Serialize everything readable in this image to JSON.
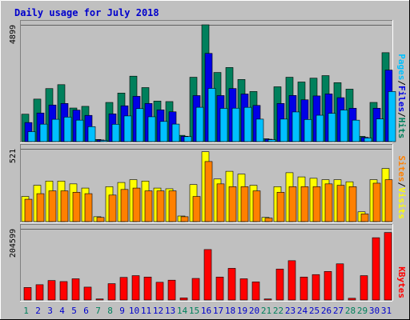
{
  "chart_data": {
    "type": "bar",
    "title": "Daily usage for July 2018",
    "days": [
      "1",
      "2",
      "3",
      "4",
      "5",
      "6",
      "7",
      "8",
      "9",
      "10",
      "11",
      "12",
      "13",
      "14",
      "15",
      "16",
      "17",
      "18",
      "19",
      "20",
      "21",
      "22",
      "23",
      "24",
      "25",
      "26",
      "27",
      "28",
      "29",
      "30",
      "31"
    ],
    "weekend_days": [
      "1",
      "7",
      "8",
      "14",
      "15",
      "21",
      "22",
      "28",
      "29"
    ],
    "colors": {
      "title": "#0000cc",
      "hits": "#00805c",
      "files": "#0000e6",
      "pages": "#00c0ff",
      "visits": "#ffff00",
      "sites": "#ff8000",
      "kbytes": "#ff0000",
      "weekday": "#0000cc",
      "weekend": "#00805c",
      "plot_bg": "#c0c0c0"
    },
    "panels": [
      {
        "name": "hits-files-pages",
        "ymax": 4899,
        "ymax_label": "4899",
        "legend": [
          {
            "text": "Pages",
            "color": "#00c0ff"
          },
          {
            "text": "/",
            "color": "#000000"
          },
          {
            "text": "Files",
            "color": "#0000e6"
          },
          {
            "text": "/",
            "color": "#000000"
          },
          {
            "text": "Hits",
            "color": "#00805c"
          }
        ],
        "series": [
          {
            "key": "hits",
            "values": [
              1150,
              1783,
              2224,
              2389,
              1409,
              1479,
              90,
              1643,
              2036,
              2745,
              2266,
              1700,
              1679,
              263,
              2700,
              4899,
              2900,
              3108,
              2606,
              2102,
              120,
              2300,
              2700,
              2500,
              2661,
              2768,
              2473,
              2200,
              220,
              1644,
              3730
            ]
          },
          {
            "key": "files",
            "values": [
              800,
              1200,
              1535,
              1600,
              1322,
              1100,
              70,
              1164,
              1502,
              1900,
              1600,
              1332,
              1250,
              224,
              1931,
              3700,
              1932,
              2227,
              1997,
              1518,
              100,
              1600,
              1936,
              1754,
              1916,
              2000,
              1843,
              1400,
              180,
              1400,
              3000
            ]
          },
          {
            "key": "pages",
            "values": [
              418,
              732,
              936,
              1029,
              900,
              628,
              50,
              728,
              1077,
              1383,
              1042,
              846,
              735,
              209,
              1439,
              2231,
              1393,
              1401,
              1437,
              943,
              80,
              945,
              1244,
              928,
              1106,
              1186,
              1325,
              900,
              150,
              950,
              2100
            ]
          }
        ]
      },
      {
        "name": "visits-sites",
        "ymax": 521,
        "ymax_label": "521",
        "legend": [
          {
            "text": "Sites",
            "color": "#ff8000"
          },
          {
            "text": "/",
            "color": "#000000"
          },
          {
            "text": "Visits",
            "color": "#ffff00"
          }
        ],
        "series": [
          {
            "key": "visits",
            "values": [
              180,
              260,
              290,
              290,
              270,
              240,
              35,
              250,
              280,
              300,
              290,
              240,
              235,
              40,
              265,
              500,
              305,
              360,
              340,
              260,
              30,
              250,
              350,
              320,
              310,
              300,
              300,
              285,
              70,
              300,
              380
            ]
          },
          {
            "key": "sites",
            "values": [
              160,
              200,
              220,
              220,
              210,
              200,
              30,
              190,
              230,
              240,
              220,
              220,
              220,
              35,
              180,
              430,
              270,
              250,
              250,
              220,
              25,
              210,
              250,
              250,
              250,
              270,
              260,
              250,
              55,
              275,
              300
            ]
          }
        ]
      },
      {
        "name": "kbytes",
        "ymax": 204599,
        "ymax_label": "204599",
        "legend": [
          {
            "text": "KBytes",
            "color": "#ff0000"
          }
        ],
        "series": [
          {
            "key": "kbytes",
            "values": [
              36000,
              44000,
              56000,
              53000,
              61000,
              37000,
              3000,
              47000,
              65000,
              70000,
              66000,
              51000,
              57000,
              6000,
              62000,
              145000,
              66000,
              91000,
              61000,
              52000,
              3000,
              89000,
              113000,
              66000,
              73000,
              82000,
              104000,
              5000,
              70000,
              179000,
              194000
            ]
          }
        ]
      }
    ]
  }
}
